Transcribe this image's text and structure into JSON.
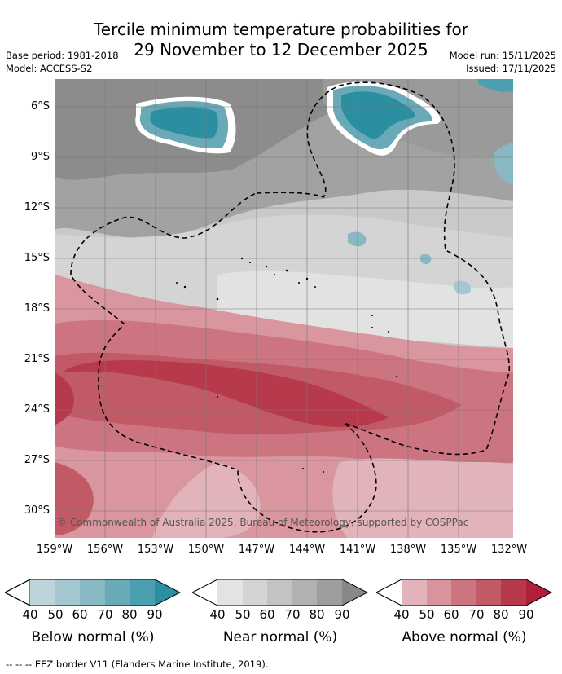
{
  "title_line1": "Tercile minimum temperature probabilities for",
  "title_line2": "29 November to 12 December 2025",
  "base_period": "Base period: 1981-2018",
  "model": "Model: ACCESS-S2",
  "model_run": "Model run: 15/11/2025",
  "issued": "Issued: 17/11/2025",
  "copyright": "© Commonwealth of Australia 2025, Bureau of Meteorology, supported by COSPPac",
  "lat_labels": [
    "6°S",
    "9°S",
    "12°S",
    "15°S",
    "18°S",
    "21°S",
    "24°S",
    "27°S",
    "30°S"
  ],
  "lon_labels": [
    "159°W",
    "156°W",
    "153°W",
    "150°W",
    "147°W",
    "144°W",
    "141°W",
    "138°W",
    "135°W",
    "132°W"
  ],
  "colorbars": [
    {
      "title": "Below normal (%)",
      "ticks": [
        "40",
        "50",
        "60",
        "70",
        "80",
        "90"
      ],
      "colors": [
        "#ffffff",
        "#bcd4da",
        "#a4c8d0",
        "#88b8c4",
        "#6aa9b8",
        "#4aa0b0",
        "#2c8fa1"
      ]
    },
    {
      "title": "Near normal (%)",
      "ticks": [
        "40",
        "50",
        "60",
        "70",
        "80",
        "90"
      ],
      "colors": [
        "#ffffff",
        "#e3e3e3",
        "#d4d4d4",
        "#c3c3c3",
        "#b1b1b1",
        "#9e9e9e",
        "#888888"
      ]
    },
    {
      "title": "Above normal (%)",
      "ticks": [
        "40",
        "50",
        "60",
        "70",
        "80",
        "90"
      ],
      "colors": [
        "#ffffff",
        "#e2b3ba",
        "#d7949c",
        "#cc7580",
        "#c15a66",
        "#b73a4c",
        "#b0203a"
      ]
    }
  ],
  "footer": "--  --  -- EEZ border V11 (Flanders Marine Institute, 2019)."
}
